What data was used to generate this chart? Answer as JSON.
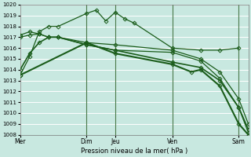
{
  "bg_color": "#c8e8e0",
  "plot_bg_color": "#c8e8e0",
  "grid_color": "#ffffff",
  "line_color": "#1a5c1a",
  "vline_color": "#4a7a4a",
  "ylabel_min": 1008,
  "ylabel_max": 1020,
  "xlabel": "Pression niveau de la mer( hPa )",
  "vlines_x": [
    3.5,
    5.0,
    8.0,
    11.5
  ],
  "series": [
    {
      "x": [
        0,
        0.5,
        1.0,
        1.5,
        2.0,
        3.5,
        4.0,
        4.5,
        5.0,
        5.5,
        6.0,
        8.0,
        9.5,
        10.5,
        11.5
      ],
      "y": [
        1013.5,
        1015.2,
        1017.5,
        1018.0,
        1018.0,
        1019.2,
        1019.5,
        1018.5,
        1019.3,
        1018.7,
        1018.3,
        1016.0,
        1015.8,
        1015.8,
        1016.0
      ],
      "marker": "D",
      "markersize": 2.5,
      "lw": 0.9
    },
    {
      "x": [
        0,
        0.5,
        1.0,
        1.5,
        2.0,
        3.5,
        5.0,
        8.0,
        9.5,
        10.5,
        11.5,
        12.0
      ],
      "y": [
        1017.2,
        1017.5,
        1017.3,
        1017.0,
        1017.0,
        1016.5,
        1016.3,
        1015.8,
        1015.0,
        1013.8,
        1011.3,
        1009.0
      ],
      "marker": "D",
      "markersize": 2.5,
      "lw": 0.9
    },
    {
      "x": [
        0,
        0.5,
        1.0,
        1.5,
        2.0,
        3.5,
        5.0,
        8.0,
        9.5,
        10.5,
        11.5,
        12.0
      ],
      "y": [
        1017.0,
        1017.2,
        1017.3,
        1017.0,
        1017.0,
        1016.3,
        1015.8,
        1015.6,
        1014.8,
        1013.2,
        1010.5,
        1008.2
      ],
      "marker": "D",
      "markersize": 2.5,
      "lw": 0.9
    },
    {
      "x": [
        0,
        0.5,
        1.0,
        1.5,
        2.0,
        3.5,
        5.0,
        8.0,
        9.5,
        10.5,
        11.5,
        12.0
      ],
      "y": [
        1014.0,
        1015.5,
        1016.5,
        1017.0,
        1017.0,
        1016.3,
        1015.8,
        1014.7,
        1014.2,
        1013.0,
        1010.5,
        1008.5
      ],
      "marker": "D",
      "markersize": 2.5,
      "lw": 1.2
    },
    {
      "x": [
        0,
        3.5,
        5.0,
        8.0,
        9.0,
        9.5,
        10.5,
        11.5,
        12.0
      ],
      "y": [
        1013.5,
        1016.5,
        1015.5,
        1014.5,
        1013.8,
        1014.0,
        1012.5,
        1009.0,
        1008.0
      ],
      "marker": "D",
      "markersize": 2.5,
      "lw": 1.5
    }
  ],
  "xtick_positions": [
    0,
    3.5,
    5.0,
    8.0,
    11.5
  ],
  "xtick_labels": [
    "Mer",
    "Dim",
    "Jeu",
    "Ven",
    "Sam"
  ],
  "xlim": [
    0,
    12.0
  ]
}
